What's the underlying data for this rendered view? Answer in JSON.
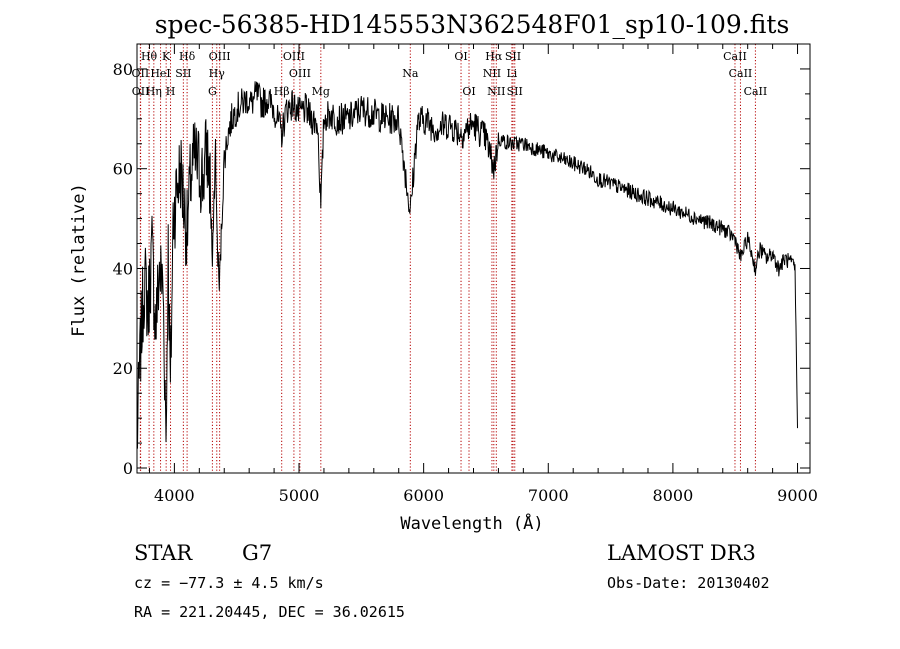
{
  "chart_data": {
    "type": "line",
    "title": "spec-56385-HD145553N362548F01_sp10-109.fits",
    "xlabel": "Wavelength (Å)",
    "ylabel": "Flux (relative)",
    "xlim": [
      3700,
      9100
    ],
    "ylim": [
      -1,
      85
    ],
    "xticks": [
      4000,
      5000,
      6000,
      7000,
      8000,
      9000
    ],
    "yticks": [
      0,
      20,
      40,
      60,
      80
    ],
    "series": [
      {
        "name": "flux",
        "x": [
          3700,
          3730,
          3760,
          3790,
          3820,
          3850,
          3880,
          3910,
          3933,
          3950,
          3968,
          3990,
          4020,
          4050,
          4080,
          4102,
          4130,
          4160,
          4200,
          4230,
          4260,
          4290,
          4305,
          4330,
          4340,
          4360,
          4400,
          4430,
          4460,
          4500,
          4540,
          4580,
          4620,
          4660,
          4700,
          4750,
          4800,
          4861,
          4900,
          4950,
          5000,
          5050,
          5100,
          5150,
          5175,
          5200,
          5250,
          5300,
          5400,
          5500,
          5600,
          5700,
          5800,
          5893,
          5950,
          6000,
          6100,
          6200,
          6300,
          6400,
          6500,
          6563,
          6600,
          6700,
          6800,
          6900,
          7000,
          7100,
          7200,
          7300,
          7400,
          7500,
          7600,
          7700,
          7800,
          7900,
          8000,
          8100,
          8200,
          8300,
          8400,
          8500,
          8542,
          8600,
          8662,
          8700,
          8750,
          8800,
          8850,
          8900,
          8950,
          8980,
          9000
        ],
        "y": [
          5,
          25,
          38,
          32,
          44,
          28,
          40,
          36,
          6,
          44,
          15,
          50,
          56,
          60,
          52,
          47,
          58,
          62,
          60,
          58,
          64,
          56,
          40,
          65,
          48,
          36,
          62,
          67,
          70,
          72,
          73,
          74,
          73,
          75,
          73,
          74,
          72,
          67,
          72,
          73,
          71,
          72,
          70,
          69,
          52,
          70,
          71,
          70,
          70,
          72,
          71,
          70,
          70,
          51,
          69,
          70,
          68,
          69,
          67,
          69,
          66,
          60,
          66,
          65,
          65,
          64,
          63,
          62,
          61,
          60,
          58,
          57,
          56,
          55,
          54,
          53,
          52,
          51,
          50,
          49,
          48,
          46,
          42,
          46,
          40,
          44,
          42,
          43,
          40,
          42,
          41,
          40,
          8
        ]
      }
    ],
    "spectral_lines": [
      {
        "label": "Hθ",
        "wavelength": 3797,
        "row": 0
      },
      {
        "label": "K",
        "wavelength": 3934,
        "row": 0
      },
      {
        "label": "Hδ",
        "wavelength": 4102,
        "row": 0
      },
      {
        "label": "OIII",
        "wavelength": 4363,
        "row": 0
      },
      {
        "label": "OIII",
        "wavelength": 4959,
        "row": 0
      },
      {
        "label": "Na",
        "wavelength": 5893,
        "row": 1
      },
      {
        "label": "OI",
        "wavelength": 6300,
        "row": 0
      },
      {
        "label": "Hα",
        "wavelength": 6563,
        "row": 0
      },
      {
        "label": "SII",
        "wavelength": 6717,
        "row": 0
      },
      {
        "label": "CaII",
        "wavelength": 8498,
        "row": 0
      },
      {
        "label": "OII",
        "wavelength": 3727,
        "row": 1
      },
      {
        "label": "HeI",
        "wavelength": 3889,
        "row": 1
      },
      {
        "label": "SII",
        "wavelength": 4072,
        "row": 1
      },
      {
        "label": "Hγ",
        "wavelength": 4340,
        "row": 1
      },
      {
        "label": "OIII",
        "wavelength": 5007,
        "row": 1
      },
      {
        "label": "NII",
        "wavelength": 6548,
        "row": 1
      },
      {
        "label": "Li",
        "wavelength": 6708,
        "row": 1
      },
      {
        "label": "CaII",
        "wavelength": 8542,
        "row": 1
      },
      {
        "label": "OII",
        "wavelength": 3729,
        "row": 2
      },
      {
        "label": "Hη",
        "wavelength": 3835,
        "row": 2
      },
      {
        "label": "H",
        "wavelength": 3969,
        "row": 2
      },
      {
        "label": "G",
        "wavelength": 4305,
        "row": 2
      },
      {
        "label": "Hβ",
        "wavelength": 4861,
        "row": 2
      },
      {
        "label": "Mg",
        "wavelength": 5175,
        "row": 2
      },
      {
        "label": "OI",
        "wavelength": 6364,
        "row": 2
      },
      {
        "label": "NII",
        "wavelength": 6583,
        "row": 2
      },
      {
        "label": "SII",
        "wavelength": 6731,
        "row": 2
      },
      {
        "label": "CaII",
        "wavelength": 8662,
        "row": 2
      }
    ],
    "line_color": "#b40000"
  },
  "info": {
    "object_class": "STAR",
    "subclass": "G7",
    "survey": "LAMOST DR3",
    "cz": "cz = −77.3 ± 4.5 km/s",
    "obs_date": "Obs-Date: 20130402",
    "coords": "RA = 221.20445, DEC =  36.02615"
  }
}
